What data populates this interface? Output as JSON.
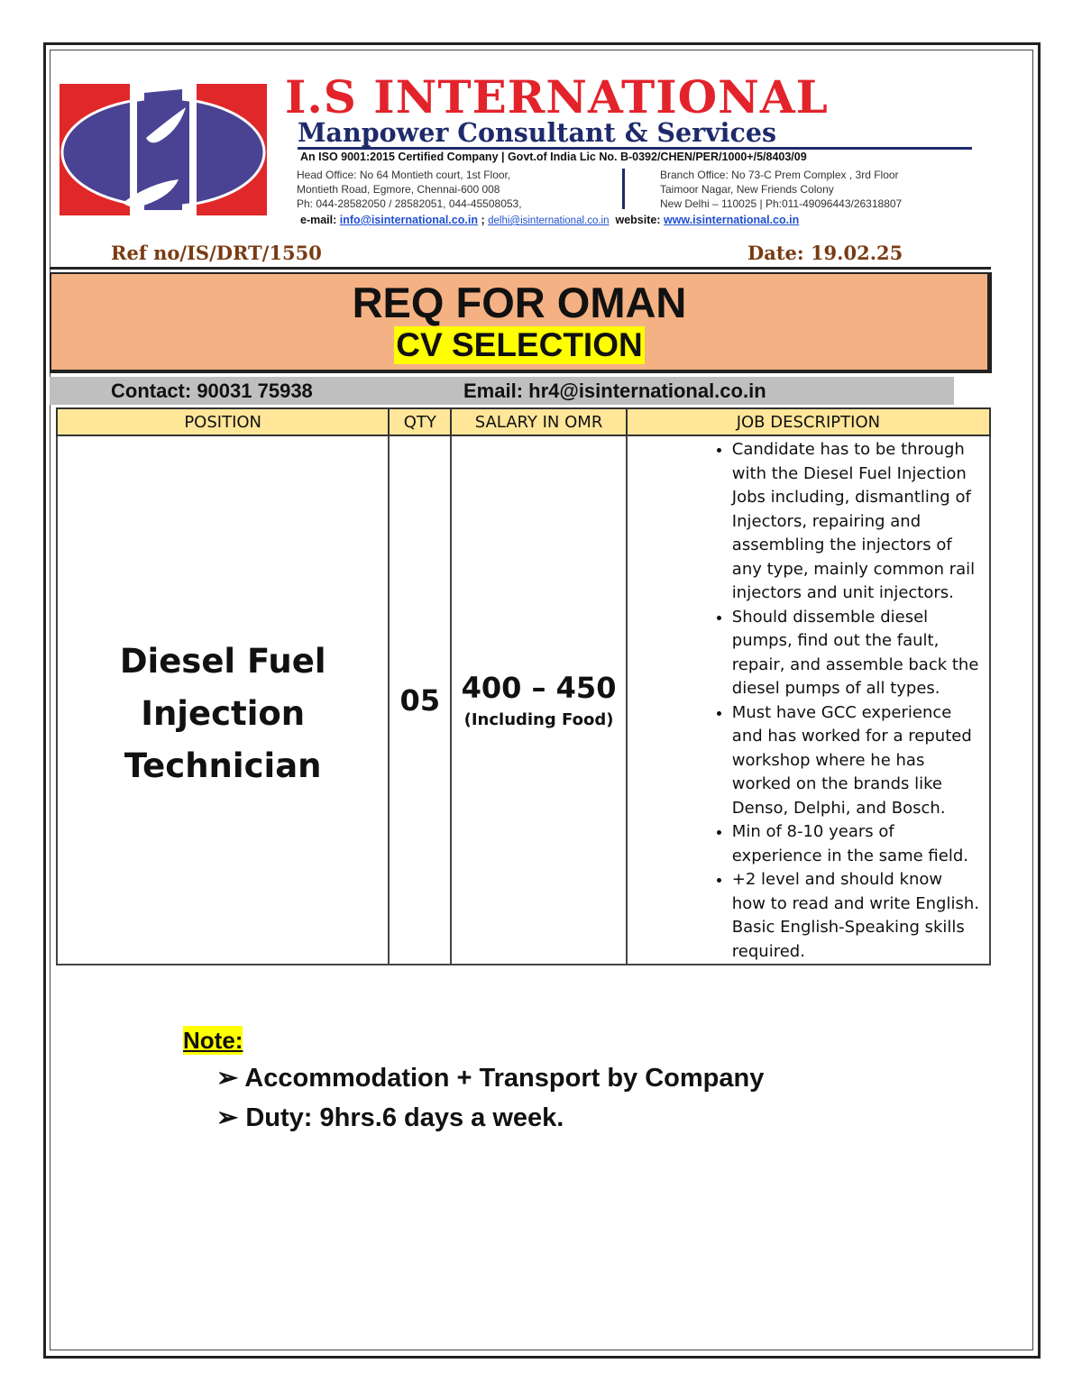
{
  "header": {
    "company": "I.S INTERNATIONAL",
    "tagline": "Manpower Consultant & Services",
    "logo_text": "IS",
    "iso_line": "An ISO 9001:2015 Certified Company | Govt.of India Lic No. B-0392/CHEN/PER/1000+/5/8403/09",
    "head_office": [
      "Head Office: No 64 Montieth court, 1st Floor,",
      "Montieth Road, Egmore, Chennai-600 008",
      "Ph: 044-28582050 / 28582051, 044-45508053,"
    ],
    "branch_office": [
      "Branch Office: No 73-C Prem Complex , 3rd Floor",
      "Taimoor Nagar, New Friends Colony",
      "New Delhi – 110025 | Ph:011-49096443/26318807"
    ],
    "email_label": "e-mail:",
    "email1": "info@isinternational.co.in",
    "email_sep": ";",
    "email2": "delhi@isinternational.co.in",
    "website_label": "website:",
    "website": "www.isinternational.co.in"
  },
  "ref": "Ref no/IS/DRT/1550",
  "date": "Date: 19.02.25",
  "banner": {
    "title": "REQ FOR OMAN",
    "subtitle": "CV SELECTION"
  },
  "contact": {
    "phone": "Contact: 90031 75938",
    "email": "Email: hr4@isinternational.co.in"
  },
  "table": {
    "headers": [
      "POSITION",
      "QTY",
      "SALARY IN OMR",
      "JOB DESCRIPTION"
    ],
    "row": {
      "position": "Diesel Fuel Injection Technician",
      "qty": "05",
      "salary": "400 – 450",
      "salary_note": "(Including Food)",
      "description": [
        "Candidate has to be through with the Diesel Fuel Injection Jobs including, dismantling of Injectors, repairing and assembling the injectors of any type, mainly common rail injectors and unit injectors.",
        "Should dissemble diesel pumps, find out the fault, repair, and assemble back the diesel pumps of all types.",
        "Must have GCC experience and has worked for a reputed workshop where he has worked on the brands like Denso, Delphi, and Bosch.",
        "Min of 8-10 years of experience in the same field.",
        "+2 level and should know how to read and write English. Basic English-Speaking skills required."
      ]
    }
  },
  "note": {
    "label": "Note:",
    "items": [
      "Accommodation + Transport by Company",
      "Duty:  9hrs.6 days a week."
    ]
  },
  "colors": {
    "brand_red": "#e3232b",
    "brand_navy": "#1f2a6b",
    "logo_blue": "#4a4393",
    "banner": "#f4b183",
    "table_header": "#ffe699",
    "highlight": "#ffff00"
  }
}
